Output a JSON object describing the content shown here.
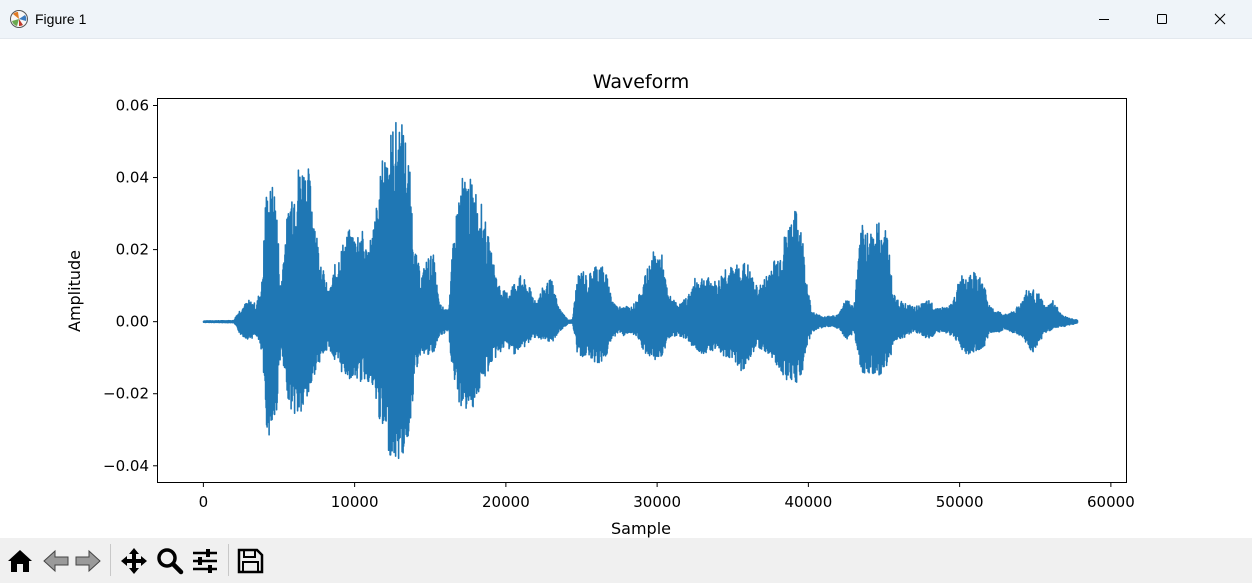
{
  "window": {
    "title": "Figure 1"
  },
  "toolbar": {
    "buttons": [
      {
        "name": "home",
        "icon": "home-icon"
      },
      {
        "name": "back",
        "icon": "arrow-left-icon"
      },
      {
        "name": "forward",
        "icon": "arrow-right-icon"
      },
      {
        "name": "pan",
        "icon": "move-icon"
      },
      {
        "name": "zoom",
        "icon": "magnifier-icon"
      },
      {
        "name": "configure",
        "icon": "sliders-icon"
      },
      {
        "name": "save",
        "icon": "floppy-disk-icon"
      }
    ]
  },
  "colors": {
    "line": "#1f77b4",
    "titlebar": "#eff4f9",
    "toolbar": "#f0f0f0"
  },
  "chart_data": {
    "type": "line",
    "title": "Waveform",
    "xlabel": "Sample",
    "ylabel": "Amplitude",
    "xlim": [
      -3000,
      61000
    ],
    "ylim": [
      -0.0445,
      0.0618
    ],
    "xticks": [
      0,
      10000,
      20000,
      30000,
      40000,
      50000,
      60000
    ],
    "xtick_labels": [
      "0",
      "10000",
      "20000",
      "30000",
      "40000",
      "50000",
      "60000"
    ],
    "yticks": [
      -0.04,
      -0.02,
      0.0,
      0.02,
      0.04,
      0.06
    ],
    "ytick_labels": [
      "−0.04",
      "−0.02",
      "0.00",
      "0.02",
      "0.04",
      "0.06"
    ],
    "grid": false,
    "legend": false,
    "series": [
      {
        "color": "#1f77b4",
        "x": [
          0,
          2000,
          2200,
          2500,
          3000,
          3500,
          3900,
          4100,
          4300,
          4600,
          4800,
          5100,
          5400,
          5800,
          6200,
          6600,
          6900,
          7200,
          7500,
          7900,
          8300,
          8700,
          9300,
          9700,
          10000,
          10400,
          10800,
          11200,
          11600,
          11900,
          12300,
          12700,
          13000,
          13300,
          13600,
          14000,
          14400,
          14800,
          15200,
          15600,
          16200,
          16400,
          16700,
          17000,
          17400,
          17800,
          18200,
          18600,
          19000,
          19500,
          20000,
          20500,
          21000,
          21500,
          22000,
          22500,
          23000,
          23500,
          24100,
          24400,
          24700,
          25100,
          25400,
          25800,
          26200,
          26600,
          27000,
          27400,
          27800,
          28200,
          28700,
          29300,
          29800,
          30300,
          30700,
          31100,
          31500,
          32000,
          32500,
          33000,
          33500,
          34000,
          34500,
          35000,
          35500,
          36000,
          36500,
          37000,
          37500,
          38000,
          38500,
          38900,
          39200,
          39500,
          39800,
          40200,
          40600,
          41000,
          41500,
          42000,
          42500,
          43000,
          43500,
          44000,
          44400,
          44800,
          45200,
          45600,
          46000,
          46500,
          47000,
          47500,
          48000,
          48500,
          49000,
          49500,
          50000,
          50400,
          50800,
          51200,
          51600,
          52000,
          52500,
          53000,
          53500,
          54000,
          54400,
          54800,
          55200,
          55700,
          56200,
          56700,
          57200,
          57800
        ],
        "y_max": [
          0.0002,
          0.0003,
          0.002,
          0.004,
          0.006,
          0.005,
          0.012,
          0.036,
          0.037,
          0.038,
          0.037,
          0.01,
          0.025,
          0.038,
          0.044,
          0.045,
          0.044,
          0.037,
          0.025,
          0.015,
          0.008,
          0.016,
          0.023,
          0.026,
          0.025,
          0.027,
          0.021,
          0.026,
          0.037,
          0.048,
          0.053,
          0.056,
          0.057,
          0.054,
          0.045,
          0.02,
          0.013,
          0.018,
          0.019,
          0.005,
          0.003,
          0.016,
          0.03,
          0.04,
          0.041,
          0.039,
          0.036,
          0.029,
          0.02,
          0.011,
          0.008,
          0.011,
          0.013,
          0.01,
          0.006,
          0.01,
          0.012,
          0.004,
          0.0005,
          0.0005,
          0.012,
          0.015,
          0.012,
          0.016,
          0.017,
          0.014,
          0.007,
          0.004,
          0.005,
          0.004,
          0.006,
          0.014,
          0.02,
          0.019,
          0.008,
          0.006,
          0.005,
          0.007,
          0.012,
          0.013,
          0.012,
          0.011,
          0.016,
          0.015,
          0.017,
          0.016,
          0.01,
          0.011,
          0.016,
          0.019,
          0.025,
          0.03,
          0.031,
          0.029,
          0.015,
          0.003,
          0.002,
          0.0015,
          0.0015,
          0.002,
          0.007,
          0.004,
          0.027,
          0.026,
          0.027,
          0.028,
          0.026,
          0.008,
          0.006,
          0.005,
          0.004,
          0.005,
          0.006,
          0.004,
          0.004,
          0.005,
          0.012,
          0.015,
          0.014,
          0.013,
          0.011,
          0.004,
          0.003,
          0.002,
          0.003,
          0.005,
          0.009,
          0.009,
          0.008,
          0.004,
          0.006,
          0.002,
          0.001,
          0.0004
        ],
        "y_min": [
          -0.0002,
          -0.0003,
          -0.002,
          -0.004,
          -0.005,
          -0.004,
          -0.01,
          -0.028,
          -0.032,
          -0.031,
          -0.027,
          -0.008,
          -0.018,
          -0.025,
          -0.027,
          -0.026,
          -0.022,
          -0.017,
          -0.012,
          -0.01,
          -0.007,
          -0.012,
          -0.015,
          -0.016,
          -0.016,
          -0.017,
          -0.016,
          -0.02,
          -0.027,
          -0.033,
          -0.037,
          -0.039,
          -0.039,
          -0.037,
          -0.031,
          -0.015,
          -0.008,
          -0.01,
          -0.009,
          -0.004,
          -0.003,
          -0.012,
          -0.021,
          -0.024,
          -0.025,
          -0.024,
          -0.02,
          -0.016,
          -0.012,
          -0.009,
          -0.007,
          -0.009,
          -0.008,
          -0.006,
          -0.004,
          -0.006,
          -0.006,
          -0.003,
          -0.0005,
          -0.0005,
          -0.009,
          -0.01,
          -0.009,
          -0.011,
          -0.012,
          -0.01,
          -0.005,
          -0.003,
          -0.004,
          -0.003,
          -0.005,
          -0.01,
          -0.011,
          -0.01,
          -0.005,
          -0.004,
          -0.004,
          -0.005,
          -0.008,
          -0.009,
          -0.008,
          -0.008,
          -0.01,
          -0.01,
          -0.014,
          -0.012,
          -0.007,
          -0.008,
          -0.01,
          -0.013,
          -0.016,
          -0.017,
          -0.017,
          -0.016,
          -0.009,
          -0.003,
          -0.002,
          -0.0015,
          -0.0015,
          -0.002,
          -0.005,
          -0.003,
          -0.014,
          -0.015,
          -0.016,
          -0.015,
          -0.013,
          -0.007,
          -0.005,
          -0.004,
          -0.003,
          -0.004,
          -0.005,
          -0.003,
          -0.003,
          -0.004,
          -0.007,
          -0.009,
          -0.009,
          -0.009,
          -0.007,
          -0.003,
          -0.003,
          -0.002,
          -0.003,
          -0.004,
          -0.007,
          -0.009,
          -0.006,
          -0.003,
          -0.002,
          -0.0015,
          -0.001,
          -0.0004
        ]
      }
    ]
  }
}
